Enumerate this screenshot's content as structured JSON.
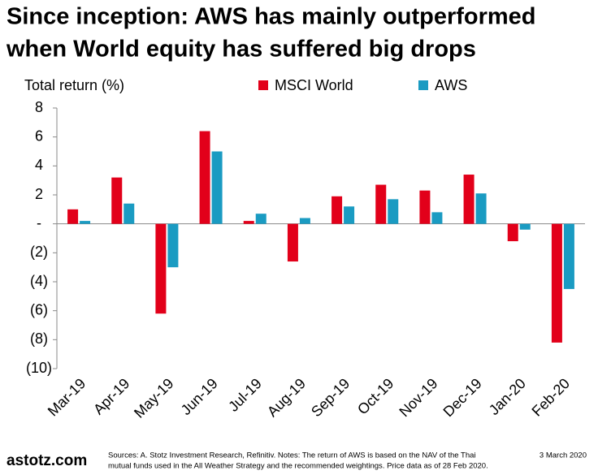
{
  "chart_data": {
    "type": "bar",
    "title": [
      "Since inception: AWS has mainly outperformed",
      "when World equity has suffered big drops"
    ],
    "y_axis_label": "Total return (%)",
    "categories": [
      "Mar-19",
      "Apr-19",
      "May-19",
      "Jun-19",
      "Jul-19",
      "Aug-19",
      "Sep-19",
      "Oct-19",
      "Nov-19",
      "Dec-19",
      "Jan-20",
      "Feb-20"
    ],
    "series": [
      {
        "name": "MSCI World",
        "color": "#e2001a",
        "values": [
          1.0,
          3.2,
          -6.2,
          6.4,
          0.2,
          -2.6,
          1.9,
          2.7,
          2.3,
          3.4,
          -1.2,
          -8.2
        ]
      },
      {
        "name": "AWS",
        "color": "#1a9bc2",
        "values": [
          0.2,
          1.4,
          -3.0,
          5.0,
          0.7,
          0.4,
          1.2,
          1.7,
          0.8,
          2.1,
          -0.4,
          -4.5
        ]
      }
    ],
    "ylim": [
      -10,
      8
    ],
    "yticks": [
      8,
      6,
      4,
      2,
      {
        "value": 0,
        "label": "-"
      },
      {
        "value": -2,
        "label": "(2)"
      },
      {
        "value": -4,
        "label": "(4)"
      },
      {
        "value": -6,
        "label": "(6)"
      },
      {
        "value": -8,
        "label": "(8)"
      },
      {
        "value": -10,
        "label": "(10)"
      }
    ],
    "legend": "top",
    "footer": {
      "brand": "astotz.com",
      "sources": [
        "Sources: A. Stotz Investment Research, Refinitiv. Notes: The return of AWS is based on the NAV of the Thai",
        "mutual funds used in the All Weather Strategy and the recommended weightings. Price data as of 28 Feb 2020."
      ],
      "date": "3 March 2020"
    }
  }
}
